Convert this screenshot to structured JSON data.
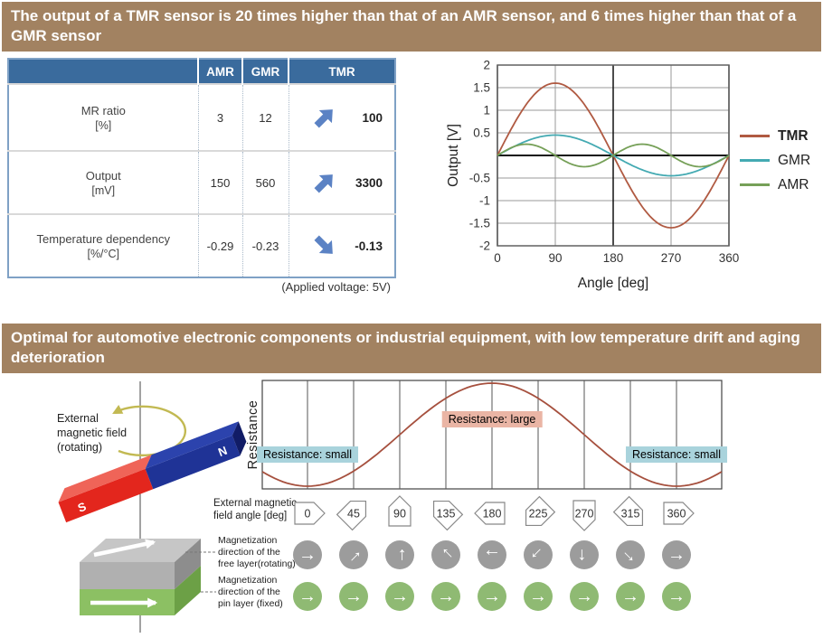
{
  "banner1": "The output of a TMR sensor is 20 times higher than that of an AMR sensor, and 6 times higher than that of a GMR sensor",
  "banner2": "Optimal for automotive electronic components or industrial equipment, with low temperature drift and aging deterioration",
  "colors": {
    "banner_bg": "#a28261",
    "table_header_bg": "#3a6b9d",
    "trend_arrow": "#5b82c4",
    "tmr_line": "#b05a42",
    "gmr_line": "#44aab2",
    "amr_line": "#76a058",
    "resistance_curve": "#a6503e",
    "note_small_bg": "#a9d3dc",
    "note_large_bg": "#eab5a5",
    "free_circle": "#9c9c9c",
    "pin_circle": "#8fba73",
    "magnet_red": "#e3261d",
    "magnet_red_top": "#ef6458",
    "magnet_blue": "#1f3396",
    "magnet_blue_top": "#2c43ad",
    "magnet_end": "#111c66",
    "rotation_arrow": "#c2b952",
    "box_top": "#c6c6c6",
    "box_gray_front": "#b0b0b0",
    "box_gray_side": "#8d8d8d",
    "box_green_front": "#8cc063",
    "box_green_side": "#6ca046"
  },
  "table": {
    "columns": [
      "AMR",
      "GMR",
      "TMR"
    ],
    "rows": [
      {
        "label": "MR ratio",
        "unit": "[%]",
        "amr": "3",
        "gmr": "12",
        "tmr": "100",
        "trend": "up"
      },
      {
        "label": "Output",
        "unit": "[mV]",
        "amr": "150",
        "gmr": "560",
        "tmr": "3300",
        "trend": "up"
      },
      {
        "label": "Temperature dependency",
        "unit": "[%/°C]",
        "amr": "-0.29",
        "gmr": "-0.23",
        "tmr": "-0.13",
        "trend": "down"
      }
    ],
    "note": "(Applied voltage: 5V)"
  },
  "chart_data": [
    {
      "type": "line",
      "title": "",
      "xlabel": "Angle [deg]",
      "ylabel": "Output [V]",
      "xlim": [
        0,
        360
      ],
      "ylim": [
        -2,
        2
      ],
      "xticks": [
        0,
        90,
        180,
        270,
        360
      ],
      "ytick_labels": [
        "2",
        "1.5",
        "1",
        "0.5",
        "-0.5",
        "-1",
        "-1.5",
        "-2"
      ],
      "ytick_values": [
        2,
        1.5,
        1,
        0.5,
        -0.5,
        -1,
        -1.5,
        -2
      ],
      "grid": true,
      "legend_position": "right",
      "categories": [
        0,
        45,
        90,
        135,
        180,
        225,
        270,
        315,
        360
      ],
      "series": [
        {
          "name": "TMR",
          "amplitude": 1.6,
          "period_deg": 360,
          "values": [
            0,
            1.13,
            1.6,
            1.13,
            0,
            -1.13,
            -1.6,
            -1.13,
            0
          ]
        },
        {
          "name": "GMR",
          "amplitude": 0.45,
          "period_deg": 360,
          "values": [
            0,
            0.32,
            0.45,
            0.32,
            0,
            -0.32,
            -0.45,
            -0.32,
            0
          ]
        },
        {
          "name": "AMR",
          "amplitude": 0.25,
          "period_deg": 180,
          "values": [
            0,
            0.25,
            0,
            -0.25,
            0,
            0.25,
            0,
            -0.25,
            0
          ]
        }
      ]
    },
    {
      "type": "line",
      "title": "",
      "xlabel": "External magnetic field angle [deg]",
      "ylabel": "Resistance",
      "xlim": [
        0,
        360
      ],
      "x": [
        0,
        45,
        90,
        135,
        180,
        225,
        270,
        315,
        360
      ],
      "values_normalized": [
        -1,
        -0.71,
        0,
        0.71,
        1,
        0.71,
        0,
        -0.71,
        -1
      ],
      "description": "Resistance is minimal at 0/360 deg and maximal at 180 deg (R ~ -cos angle)",
      "grid": true
    }
  ],
  "diagram": {
    "external_field_label": "External\nmagnetic field\n(rotating)",
    "magnet_south": "S",
    "magnet_north": "N",
    "angle_row_label": "External magnetic\nfield angle  [deg]",
    "angles_deg": [
      0,
      45,
      90,
      135,
      180,
      225,
      270,
      315,
      360
    ],
    "free_label": "Magnetization\ndirection of the\nfree layer(rotating)",
    "pin_label": "Magnetization\ndirection of the\npin layer (fixed)",
    "pin_arrow_angle_deg": 0,
    "annotations": [
      {
        "text": "Resistance: small",
        "angle": 0,
        "level": "low",
        "bg": "#a9d3dc"
      },
      {
        "text": "Resistance: large",
        "angle": 180,
        "level": "high",
        "bg": "#eab5a5"
      },
      {
        "text": "Resistance: small",
        "angle": 360,
        "level": "low",
        "bg": "#a9d3dc"
      }
    ]
  }
}
